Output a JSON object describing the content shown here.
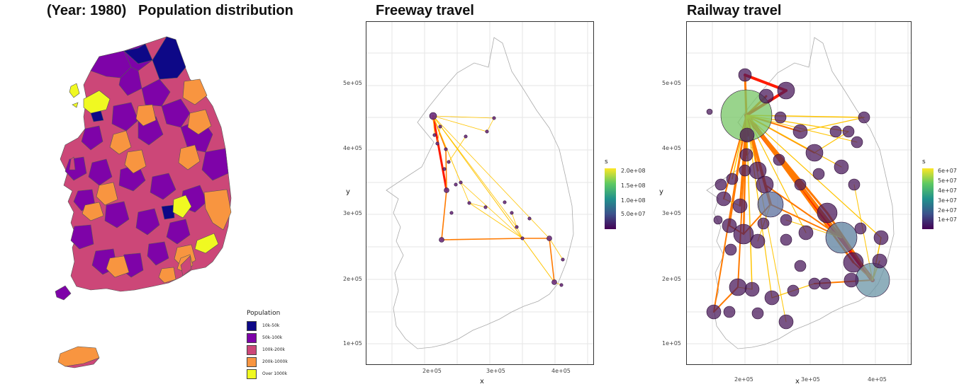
{
  "map1": {
    "title": "(Year: 1980)   Population distribution",
    "legend_title": "Population",
    "legend": [
      {
        "label": "10k-50k",
        "color": "#0d0887"
      },
      {
        "label": "50k-100k",
        "color": "#7e03a8"
      },
      {
        "label": "100k-200k",
        "color": "#cc4778"
      },
      {
        "label": "200k-1000k",
        "color": "#f89540"
      },
      {
        "label": "Over 1000k",
        "color": "#f0f921"
      }
    ]
  },
  "map2": {
    "title": "Freeway travel",
    "xlabel": "x",
    "ylabel": "y",
    "x_ticks": [
      "2e+05",
      "3e+05",
      "4e+05"
    ],
    "y_ticks": [
      "1e+05",
      "2e+05",
      "3e+05",
      "4e+05",
      "5e+05"
    ],
    "legend_title": "s",
    "legend_ticks": [
      "2.0e+08",
      "1.5e+08",
      "1.0e+08",
      "5.0e+07"
    ]
  },
  "map3": {
    "title": "Railway travel",
    "xlabel": "x",
    "ylabel": "y",
    "x_ticks": [
      "2e+05",
      "3e+05",
      "4e+05"
    ],
    "y_ticks": [
      "1e+05",
      "2e+05",
      "3e+05",
      "4e+05",
      "5e+05"
    ],
    "legend_title": "s",
    "legend_ticks": [
      "6e+07",
      "5e+07",
      "4e+07",
      "3e+07",
      "2e+07",
      "1e+07"
    ]
  },
  "colors": {
    "node_fill": "#4b1b5c",
    "node_edge": "#3a0f4a",
    "flow_low": "#ffc400",
    "flow_mid": "#ff7a00",
    "flow_high": "#ff1a00",
    "viridis": [
      "#fde725",
      "#5ec962",
      "#21918c",
      "#3b528b",
      "#440154"
    ]
  }
}
